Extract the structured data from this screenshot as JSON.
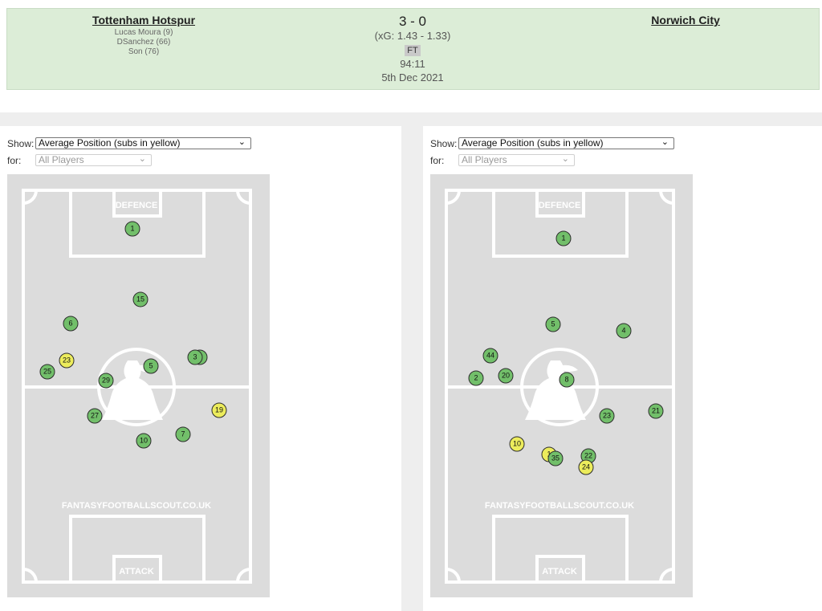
{
  "match": {
    "home_team": "Tottenham Hotspur",
    "away_team": "Norwich City",
    "home_scorers": [
      "Lucas Moura (9)",
      "DSanchez (66)",
      "Son (76)"
    ],
    "score": "3 - 0",
    "xg": "(xG:  1.43 - 1.33)",
    "status": "FT",
    "clock": "94:11",
    "date": "5th Dec 2021"
  },
  "panels": [
    {
      "show_label": "Show:",
      "show_value": "Average Position (subs in yellow)",
      "for_label": "for:",
      "for_value": "All Players",
      "pitch_labels": {
        "defence": "DEFENCE",
        "attack": "ATTACK",
        "watermark": "FANTASYFOOTBALLSCOUT.CO.UK"
      },
      "players": [
        {
          "number": "1",
          "sub": false
        },
        {
          "number": "15",
          "sub": false
        },
        {
          "number": "6",
          "sub": false
        },
        {
          "number": "3",
          "sub": false
        },
        {
          "number": "3",
          "sub": false
        },
        {
          "number": "23",
          "sub": true
        },
        {
          "number": "25",
          "sub": false
        },
        {
          "number": "5",
          "sub": false
        },
        {
          "number": "29",
          "sub": false
        },
        {
          "number": "19",
          "sub": true
        },
        {
          "number": "27",
          "sub": false
        },
        {
          "number": "7",
          "sub": false
        },
        {
          "number": "10",
          "sub": false
        }
      ]
    },
    {
      "show_label": "Show:",
      "show_value": "Average Position (subs in yellow)",
      "for_label": "for:",
      "for_value": "All Players",
      "pitch_labels": {
        "defence": "DEFENCE",
        "attack": "ATTACK",
        "watermark": "FANTASYFOOTBALLSCOUT.CO.UK"
      },
      "players": [
        {
          "number": "1",
          "sub": false
        },
        {
          "number": "5",
          "sub": false
        },
        {
          "number": "4",
          "sub": false
        },
        {
          "number": "44",
          "sub": false
        },
        {
          "number": "2",
          "sub": false
        },
        {
          "number": "20",
          "sub": false
        },
        {
          "number": "8",
          "sub": false
        },
        {
          "number": "23",
          "sub": false
        },
        {
          "number": "21",
          "sub": false
        },
        {
          "number": "10",
          "sub": true
        },
        {
          "number": "1",
          "sub": true
        },
        {
          "number": "35",
          "sub": false
        },
        {
          "number": "22",
          "sub": false
        },
        {
          "number": "24",
          "sub": true
        }
      ]
    }
  ],
  "colors": {
    "starter": "#72bf6a",
    "sub": "#ecec5c",
    "pitch": "#dcdcdc",
    "header_bg": "#dcedd7"
  }
}
